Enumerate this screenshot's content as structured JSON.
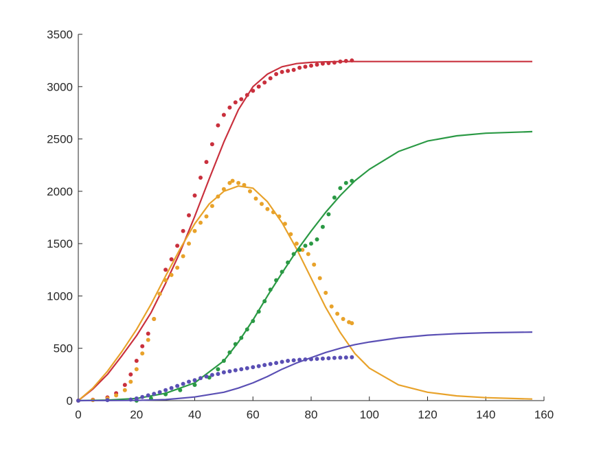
{
  "chart_data": {
    "type": "line",
    "title": "",
    "xlabel": "",
    "ylabel": "",
    "xlim": [
      0,
      160
    ],
    "ylim": [
      0,
      3500
    ],
    "xticks": [
      0,
      20,
      40,
      60,
      80,
      100,
      120,
      140,
      160
    ],
    "yticks": [
      0,
      500,
      1000,
      1500,
      2000,
      2500,
      3000,
      3500
    ],
    "grid": false,
    "legend": "none",
    "fit_x_end": 156,
    "series": [
      {
        "id": "red",
        "color": "#c9303d",
        "points": [
          [
            0,
            0
          ],
          [
            5,
            8
          ],
          [
            10,
            30
          ],
          [
            13,
            70
          ],
          [
            16,
            150
          ],
          [
            18,
            250
          ],
          [
            20,
            380
          ],
          [
            22,
            520
          ],
          [
            24,
            640
          ],
          [
            26,
            780
          ],
          [
            28,
            1020
          ],
          [
            30,
            1250
          ],
          [
            32,
            1350
          ],
          [
            34,
            1480
          ],
          [
            36,
            1620
          ],
          [
            38,
            1770
          ],
          [
            40,
            1960
          ],
          [
            42,
            2130
          ],
          [
            44,
            2280
          ],
          [
            46,
            2450
          ],
          [
            48,
            2630
          ],
          [
            50,
            2730
          ],
          [
            52,
            2800
          ],
          [
            54,
            2850
          ],
          [
            56,
            2880
          ],
          [
            58,
            2920
          ],
          [
            60,
            2960
          ],
          [
            62,
            3000
          ],
          [
            64,
            3040
          ],
          [
            66,
            3080
          ],
          [
            68,
            3120
          ],
          [
            70,
            3140
          ],
          [
            72,
            3150
          ],
          [
            74,
            3160
          ],
          [
            76,
            3180
          ],
          [
            78,
            3190
          ],
          [
            80,
            3200
          ],
          [
            82,
            3210
          ],
          [
            84,
            3220
          ],
          [
            86,
            3225
          ],
          [
            88,
            3230
          ],
          [
            90,
            3240
          ],
          [
            92,
            3245
          ],
          [
            94,
            3250
          ]
        ],
        "fit": [
          [
            0,
            0
          ],
          [
            5,
            110
          ],
          [
            10,
            250
          ],
          [
            15,
            430
          ],
          [
            20,
            620
          ],
          [
            25,
            840
          ],
          [
            30,
            1120
          ],
          [
            35,
            1420
          ],
          [
            40,
            1760
          ],
          [
            45,
            2120
          ],
          [
            50,
            2470
          ],
          [
            55,
            2780
          ],
          [
            60,
            3000
          ],
          [
            65,
            3120
          ],
          [
            70,
            3190
          ],
          [
            75,
            3220
          ],
          [
            80,
            3232
          ],
          [
            85,
            3237
          ],
          [
            90,
            3240
          ],
          [
            100,
            3240
          ],
          [
            156,
            3240
          ]
        ]
      },
      {
        "id": "orange",
        "color": "#e8a22a",
        "points": [
          [
            0,
            0
          ],
          [
            5,
            5
          ],
          [
            10,
            20
          ],
          [
            13,
            50
          ],
          [
            16,
            100
          ],
          [
            18,
            180
          ],
          [
            20,
            300
          ],
          [
            22,
            450
          ],
          [
            24,
            580
          ],
          [
            26,
            780
          ],
          [
            28,
            1020
          ],
          [
            30,
            1150
          ],
          [
            32,
            1200
          ],
          [
            34,
            1270
          ],
          [
            36,
            1380
          ],
          [
            38,
            1500
          ],
          [
            40,
            1620
          ],
          [
            42,
            1700
          ],
          [
            44,
            1760
          ],
          [
            46,
            1860
          ],
          [
            48,
            1950
          ],
          [
            50,
            2020
          ],
          [
            52,
            2080
          ],
          [
            53,
            2100
          ],
          [
            55,
            2080
          ],
          [
            57,
            2060
          ],
          [
            59,
            2000
          ],
          [
            61,
            1930
          ],
          [
            63,
            1880
          ],
          [
            65,
            1830
          ],
          [
            67,
            1800
          ],
          [
            69,
            1760
          ],
          [
            71,
            1690
          ],
          [
            73,
            1590
          ],
          [
            75,
            1500
          ],
          [
            77,
            1440
          ],
          [
            79,
            1400
          ],
          [
            81,
            1300
          ],
          [
            83,
            1170
          ],
          [
            85,
            1030
          ],
          [
            87,
            900
          ],
          [
            89,
            830
          ],
          [
            91,
            780
          ],
          [
            93,
            750
          ],
          [
            94,
            740
          ]
        ],
        "fit": [
          [
            0,
            0
          ],
          [
            5,
            120
          ],
          [
            10,
            280
          ],
          [
            15,
            470
          ],
          [
            20,
            680
          ],
          [
            25,
            920
          ],
          [
            30,
            1190
          ],
          [
            35,
            1450
          ],
          [
            40,
            1690
          ],
          [
            45,
            1880
          ],
          [
            50,
            2000
          ],
          [
            55,
            2050
          ],
          [
            60,
            2030
          ],
          [
            65,
            1900
          ],
          [
            70,
            1700
          ],
          [
            75,
            1450
          ],
          [
            80,
            1170
          ],
          [
            85,
            890
          ],
          [
            90,
            650
          ],
          [
            95,
            450
          ],
          [
            100,
            310
          ],
          [
            110,
            150
          ],
          [
            120,
            80
          ],
          [
            130,
            45
          ],
          [
            140,
            28
          ],
          [
            156,
            15
          ]
        ]
      },
      {
        "id": "green",
        "color": "#2a9944",
        "points": [
          [
            20,
            0
          ],
          [
            25,
            20
          ],
          [
            30,
            60
          ],
          [
            35,
            100
          ],
          [
            40,
            150
          ],
          [
            45,
            220
          ],
          [
            48,
            300
          ],
          [
            50,
            380
          ],
          [
            52,
            460
          ],
          [
            54,
            540
          ],
          [
            56,
            600
          ],
          [
            58,
            680
          ],
          [
            60,
            760
          ],
          [
            62,
            850
          ],
          [
            64,
            950
          ],
          [
            66,
            1060
          ],
          [
            68,
            1150
          ],
          [
            70,
            1230
          ],
          [
            72,
            1320
          ],
          [
            74,
            1400
          ],
          [
            76,
            1440
          ],
          [
            78,
            1480
          ],
          [
            80,
            1500
          ],
          [
            82,
            1540
          ],
          [
            84,
            1660
          ],
          [
            86,
            1780
          ],
          [
            88,
            1940
          ],
          [
            90,
            2030
          ],
          [
            92,
            2080
          ],
          [
            94,
            2100
          ]
        ],
        "fit": [
          [
            0,
            0
          ],
          [
            10,
            5
          ],
          [
            20,
            20
          ],
          [
            30,
            70
          ],
          [
            40,
            170
          ],
          [
            50,
            380
          ],
          [
            55,
            560
          ],
          [
            60,
            770
          ],
          [
            65,
            1000
          ],
          [
            70,
            1220
          ],
          [
            75,
            1430
          ],
          [
            80,
            1620
          ],
          [
            85,
            1800
          ],
          [
            90,
            1960
          ],
          [
            95,
            2100
          ],
          [
            100,
            2210
          ],
          [
            110,
            2380
          ],
          [
            120,
            2480
          ],
          [
            130,
            2530
          ],
          [
            140,
            2555
          ],
          [
            156,
            2570
          ]
        ]
      },
      {
        "id": "purple",
        "color": "#5a4fb4",
        "points": [
          [
            0,
            0
          ],
          [
            10,
            5
          ],
          [
            18,
            10
          ],
          [
            20,
            20
          ],
          [
            22,
            35
          ],
          [
            24,
            50
          ],
          [
            26,
            65
          ],
          [
            28,
            80
          ],
          [
            30,
            100
          ],
          [
            32,
            120
          ],
          [
            34,
            140
          ],
          [
            36,
            160
          ],
          [
            38,
            180
          ],
          [
            40,
            195
          ],
          [
            42,
            215
          ],
          [
            44,
            230
          ],
          [
            46,
            245
          ],
          [
            48,
            255
          ],
          [
            50,
            270
          ],
          [
            52,
            280
          ],
          [
            54,
            290
          ],
          [
            56,
            300
          ],
          [
            58,
            310
          ],
          [
            60,
            320
          ],
          [
            62,
            330
          ],
          [
            64,
            340
          ],
          [
            66,
            350
          ],
          [
            68,
            360
          ],
          [
            70,
            370
          ],
          [
            72,
            380
          ],
          [
            74,
            385
          ],
          [
            76,
            390
          ],
          [
            78,
            393
          ],
          [
            80,
            396
          ],
          [
            82,
            399
          ],
          [
            84,
            402
          ],
          [
            86,
            405
          ],
          [
            88,
            408
          ],
          [
            90,
            410
          ],
          [
            92,
            412
          ],
          [
            94,
            415
          ]
        ],
        "fit": [
          [
            0,
            0
          ],
          [
            20,
            2
          ],
          [
            30,
            10
          ],
          [
            40,
            35
          ],
          [
            50,
            80
          ],
          [
            55,
            120
          ],
          [
            60,
            170
          ],
          [
            65,
            230
          ],
          [
            70,
            300
          ],
          [
            75,
            360
          ],
          [
            80,
            410
          ],
          [
            85,
            460
          ],
          [
            90,
            500
          ],
          [
            95,
            535
          ],
          [
            100,
            560
          ],
          [
            110,
            600
          ],
          [
            120,
            625
          ],
          [
            130,
            640
          ],
          [
            140,
            648
          ],
          [
            156,
            655
          ]
        ]
      }
    ]
  }
}
